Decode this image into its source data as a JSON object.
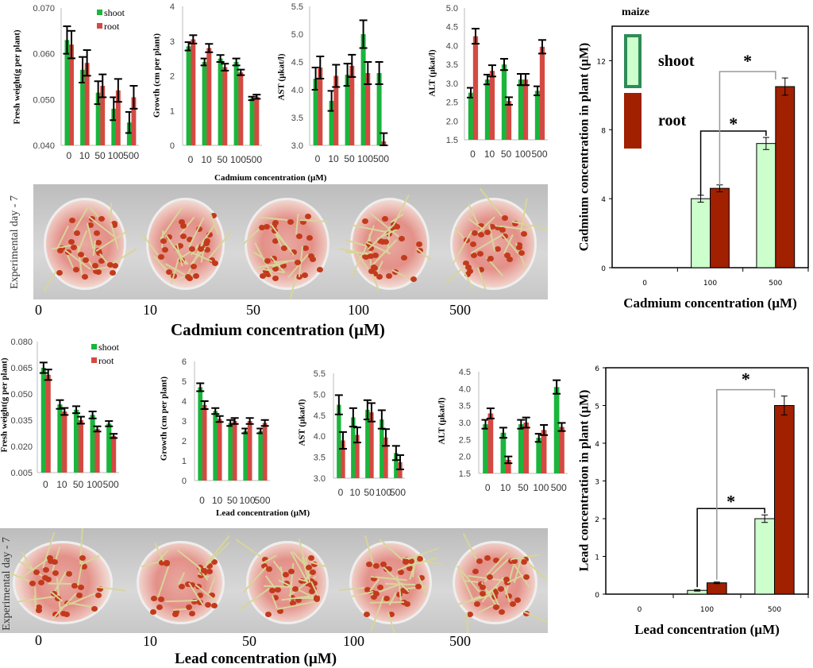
{
  "cadmium_section": {
    "xlabel": "Cadmium concentration (µM)",
    "photo_side_label": "Experimental day - 7",
    "photo_labels": [
      "0",
      "10",
      "50",
      "100",
      "500"
    ],
    "photo_axis_title": "Cadmium concentration (µM)"
  },
  "lead_section": {
    "xlabel": "Lead concentration (µM)",
    "photo_side_label": "Experimental day - 7",
    "photo_labels": [
      "0",
      "10",
      "50",
      "100",
      "500"
    ],
    "photo_axis_title": "Lead concentration (µM)"
  },
  "colors": {
    "shoot": "#1bb53c",
    "root": "#d44a42",
    "shoot_big": "#ccffcc",
    "shoot_big_edge": "#2e8b57",
    "root_big": "#a02000"
  },
  "chart_data": [
    {
      "type": "bar",
      "ylabel": "Fresh weight(g per  plant)",
      "categories": [
        "0",
        "10",
        "50",
        "100",
        "500"
      ],
      "ylim": [
        0.04,
        0.07
      ],
      "yticks": [
        "0.040",
        "0.050",
        "0.060",
        "0.070"
      ],
      "legend": "top-right",
      "series": [
        {
          "name": "shoot",
          "values": [
            0.063,
            0.0565,
            0.0515,
            0.048,
            0.045
          ],
          "errors": [
            0.003,
            0.0028,
            0.0025,
            0.0025,
            0.0023
          ]
        },
        {
          "name": "root",
          "values": [
            0.062,
            0.058,
            0.053,
            0.052,
            0.0505
          ],
          "errors": [
            0.003,
            0.0028,
            0.0025,
            0.0025,
            0.0025
          ]
        }
      ]
    },
    {
      "type": "bar",
      "ylabel": "Growth (cm per plant)",
      "categories": [
        "0",
        "10",
        "50",
        "100",
        "500"
      ],
      "ylim": [
        0,
        4
      ],
      "yticks": [
        "0",
        "1",
        "2",
        "3",
        "4"
      ],
      "series": [
        {
          "values": [
            2.85,
            2.4,
            2.5,
            2.4,
            1.35
          ],
          "errors": [
            0.12,
            0.1,
            0.1,
            0.1,
            0.05
          ]
        },
        {
          "values": [
            3.05,
            2.8,
            2.25,
            2.1,
            1.4
          ],
          "errors": [
            0.12,
            0.12,
            0.1,
            0.08,
            0.06
          ]
        }
      ]
    },
    {
      "type": "bar",
      "ylabel": "AST (µkat/l)",
      "categories": [
        "0",
        "10",
        "50",
        "100",
        "500"
      ],
      "ylim": [
        3.0,
        5.5
      ],
      "yticks": [
        "3.0",
        "3.5",
        "4.0",
        "4.5",
        "5.0",
        "5.5"
      ],
      "series": [
        {
          "values": [
            4.2,
            3.8,
            4.27,
            5.0,
            4.3
          ],
          "errors": [
            0.2,
            0.18,
            0.2,
            0.25,
            0.2
          ]
        },
        {
          "values": [
            4.4,
            4.25,
            4.43,
            4.3,
            3.07
          ],
          "errors": [
            0.2,
            0.2,
            0.2,
            0.2,
            0.15
          ]
        }
      ]
    },
    {
      "type": "bar",
      "ylabel": "ALT (µkat/l)",
      "categories": [
        "0",
        "10",
        "50",
        "100",
        "500"
      ],
      "ylim": [
        1.5,
        5.0
      ],
      "yticks": [
        "1.5",
        "2.0",
        "2.5",
        "3.0",
        "3.5",
        "4.0",
        "4.5",
        "5.0"
      ],
      "series": [
        {
          "values": [
            2.75,
            3.1,
            3.5,
            3.1,
            2.8
          ],
          "errors": [
            0.13,
            0.13,
            0.15,
            0.15,
            0.12
          ]
        },
        {
          "values": [
            4.25,
            3.33,
            2.53,
            3.1,
            3.97
          ],
          "errors": [
            0.2,
            0.15,
            0.1,
            0.15,
            0.18
          ]
        }
      ]
    },
    {
      "type": "bar",
      "title": "maize",
      "ylabel": "Cadmium concentration in plant (µM)",
      "xlabel": "Cadmium concentration (µM)",
      "categories": [
        "0",
        "100",
        "500"
      ],
      "ylim": [
        0,
        14
      ],
      "yticks": [
        "0",
        "4",
        "8",
        "12"
      ],
      "legend": "top-left",
      "series": [
        {
          "name": "shoot",
          "values": [
            0,
            4.0,
            7.2
          ],
          "errors": [
            0,
            0.2,
            0.35
          ]
        },
        {
          "name": "root",
          "values": [
            0,
            4.6,
            10.5
          ],
          "errors": [
            0,
            0.2,
            0.5
          ]
        }
      ],
      "annotations": [
        "*",
        "*"
      ]
    },
    {
      "type": "bar",
      "ylabel": "Fresh weight(g per  plant)",
      "categories": [
        "0",
        "10",
        "50",
        "100",
        "500"
      ],
      "ylim": [
        0.005,
        0.08
      ],
      "yticks": [
        "0.005",
        "0.020",
        "0.035",
        "0.050",
        "0.065",
        "0.080"
      ],
      "legend": "top-right",
      "series": [
        {
          "name": "shoot",
          "values": [
            0.065,
            0.044,
            0.041,
            0.038,
            0.033
          ],
          "errors": [
            0.003,
            0.0025,
            0.002,
            0.002,
            0.0015
          ]
        },
        {
          "name": "root",
          "values": [
            0.061,
            0.04,
            0.035,
            0.03,
            0.026
          ],
          "errors": [
            0.003,
            0.002,
            0.002,
            0.0015,
            0.0012
          ]
        }
      ]
    },
    {
      "type": "bar",
      "ylabel": "Growth (cm per plant)",
      "categories": [
        "0",
        "10",
        "50",
        "100",
        "500"
      ],
      "ylim": [
        0,
        6
      ],
      "yticks": [
        "0",
        "1",
        "2",
        "3",
        "4",
        "5",
        "6"
      ],
      "series": [
        {
          "values": [
            4.7,
            3.5,
            2.9,
            2.5,
            2.5
          ],
          "errors": [
            0.2,
            0.15,
            0.15,
            0.12,
            0.12
          ]
        },
        {
          "values": [
            3.8,
            3.1,
            3.0,
            3.0,
            2.9
          ],
          "errors": [
            0.2,
            0.15,
            0.15,
            0.15,
            0.15
          ]
        }
      ]
    },
    {
      "type": "bar",
      "ylabel": "AST (µkat/l)",
      "categories": [
        "0",
        "10",
        "50",
        "100",
        "500"
      ],
      "ylim": [
        3.0,
        5.5
      ],
      "yticks": [
        "3.0",
        "3.5",
        "4.0",
        "4.5",
        "5.0",
        "5.5"
      ],
      "series": [
        {
          "values": [
            4.75,
            4.45,
            4.63,
            4.4,
            3.6
          ],
          "errors": [
            0.23,
            0.22,
            0.23,
            0.22,
            0.17
          ]
        },
        {
          "values": [
            3.9,
            4.03,
            4.57,
            3.97,
            3.38
          ],
          "errors": [
            0.2,
            0.18,
            0.22,
            0.2,
            0.17
          ]
        }
      ]
    },
    {
      "type": "bar",
      "ylabel": "ALT (µkat/l)",
      "categories": [
        "0",
        "10",
        "50",
        "100",
        "500"
      ],
      "ylim": [
        1.5,
        4.5
      ],
      "yticks": [
        "1.5",
        "2.0",
        "2.5",
        "3.0",
        "3.5",
        "4.0",
        "4.5"
      ],
      "series": [
        {
          "values": [
            2.95,
            2.7,
            2.95,
            2.55,
            4.05
          ],
          "errors": [
            0.13,
            0.15,
            0.13,
            0.12,
            0.2
          ]
        },
        {
          "values": [
            3.27,
            1.9,
            3.0,
            2.78,
            2.87
          ],
          "errors": [
            0.15,
            0.1,
            0.15,
            0.15,
            0.12
          ]
        }
      ]
    },
    {
      "type": "bar",
      "ylabel": "Lead concentration in plant (µM)",
      "xlabel": "Lead concentration (µM)",
      "categories": [
        "0",
        "100",
        "500"
      ],
      "ylim": [
        0,
        6
      ],
      "yticks": [
        "0",
        "1",
        "2",
        "3",
        "4",
        "5",
        "6"
      ],
      "series": [
        {
          "values": [
            0,
            0.1,
            2.0
          ],
          "errors": [
            0,
            0.02,
            0.1
          ]
        },
        {
          "values": [
            0,
            0.3,
            5.0
          ],
          "errors": [
            0,
            0.02,
            0.25
          ]
        }
      ],
      "annotations": [
        "*",
        "*"
      ]
    }
  ]
}
